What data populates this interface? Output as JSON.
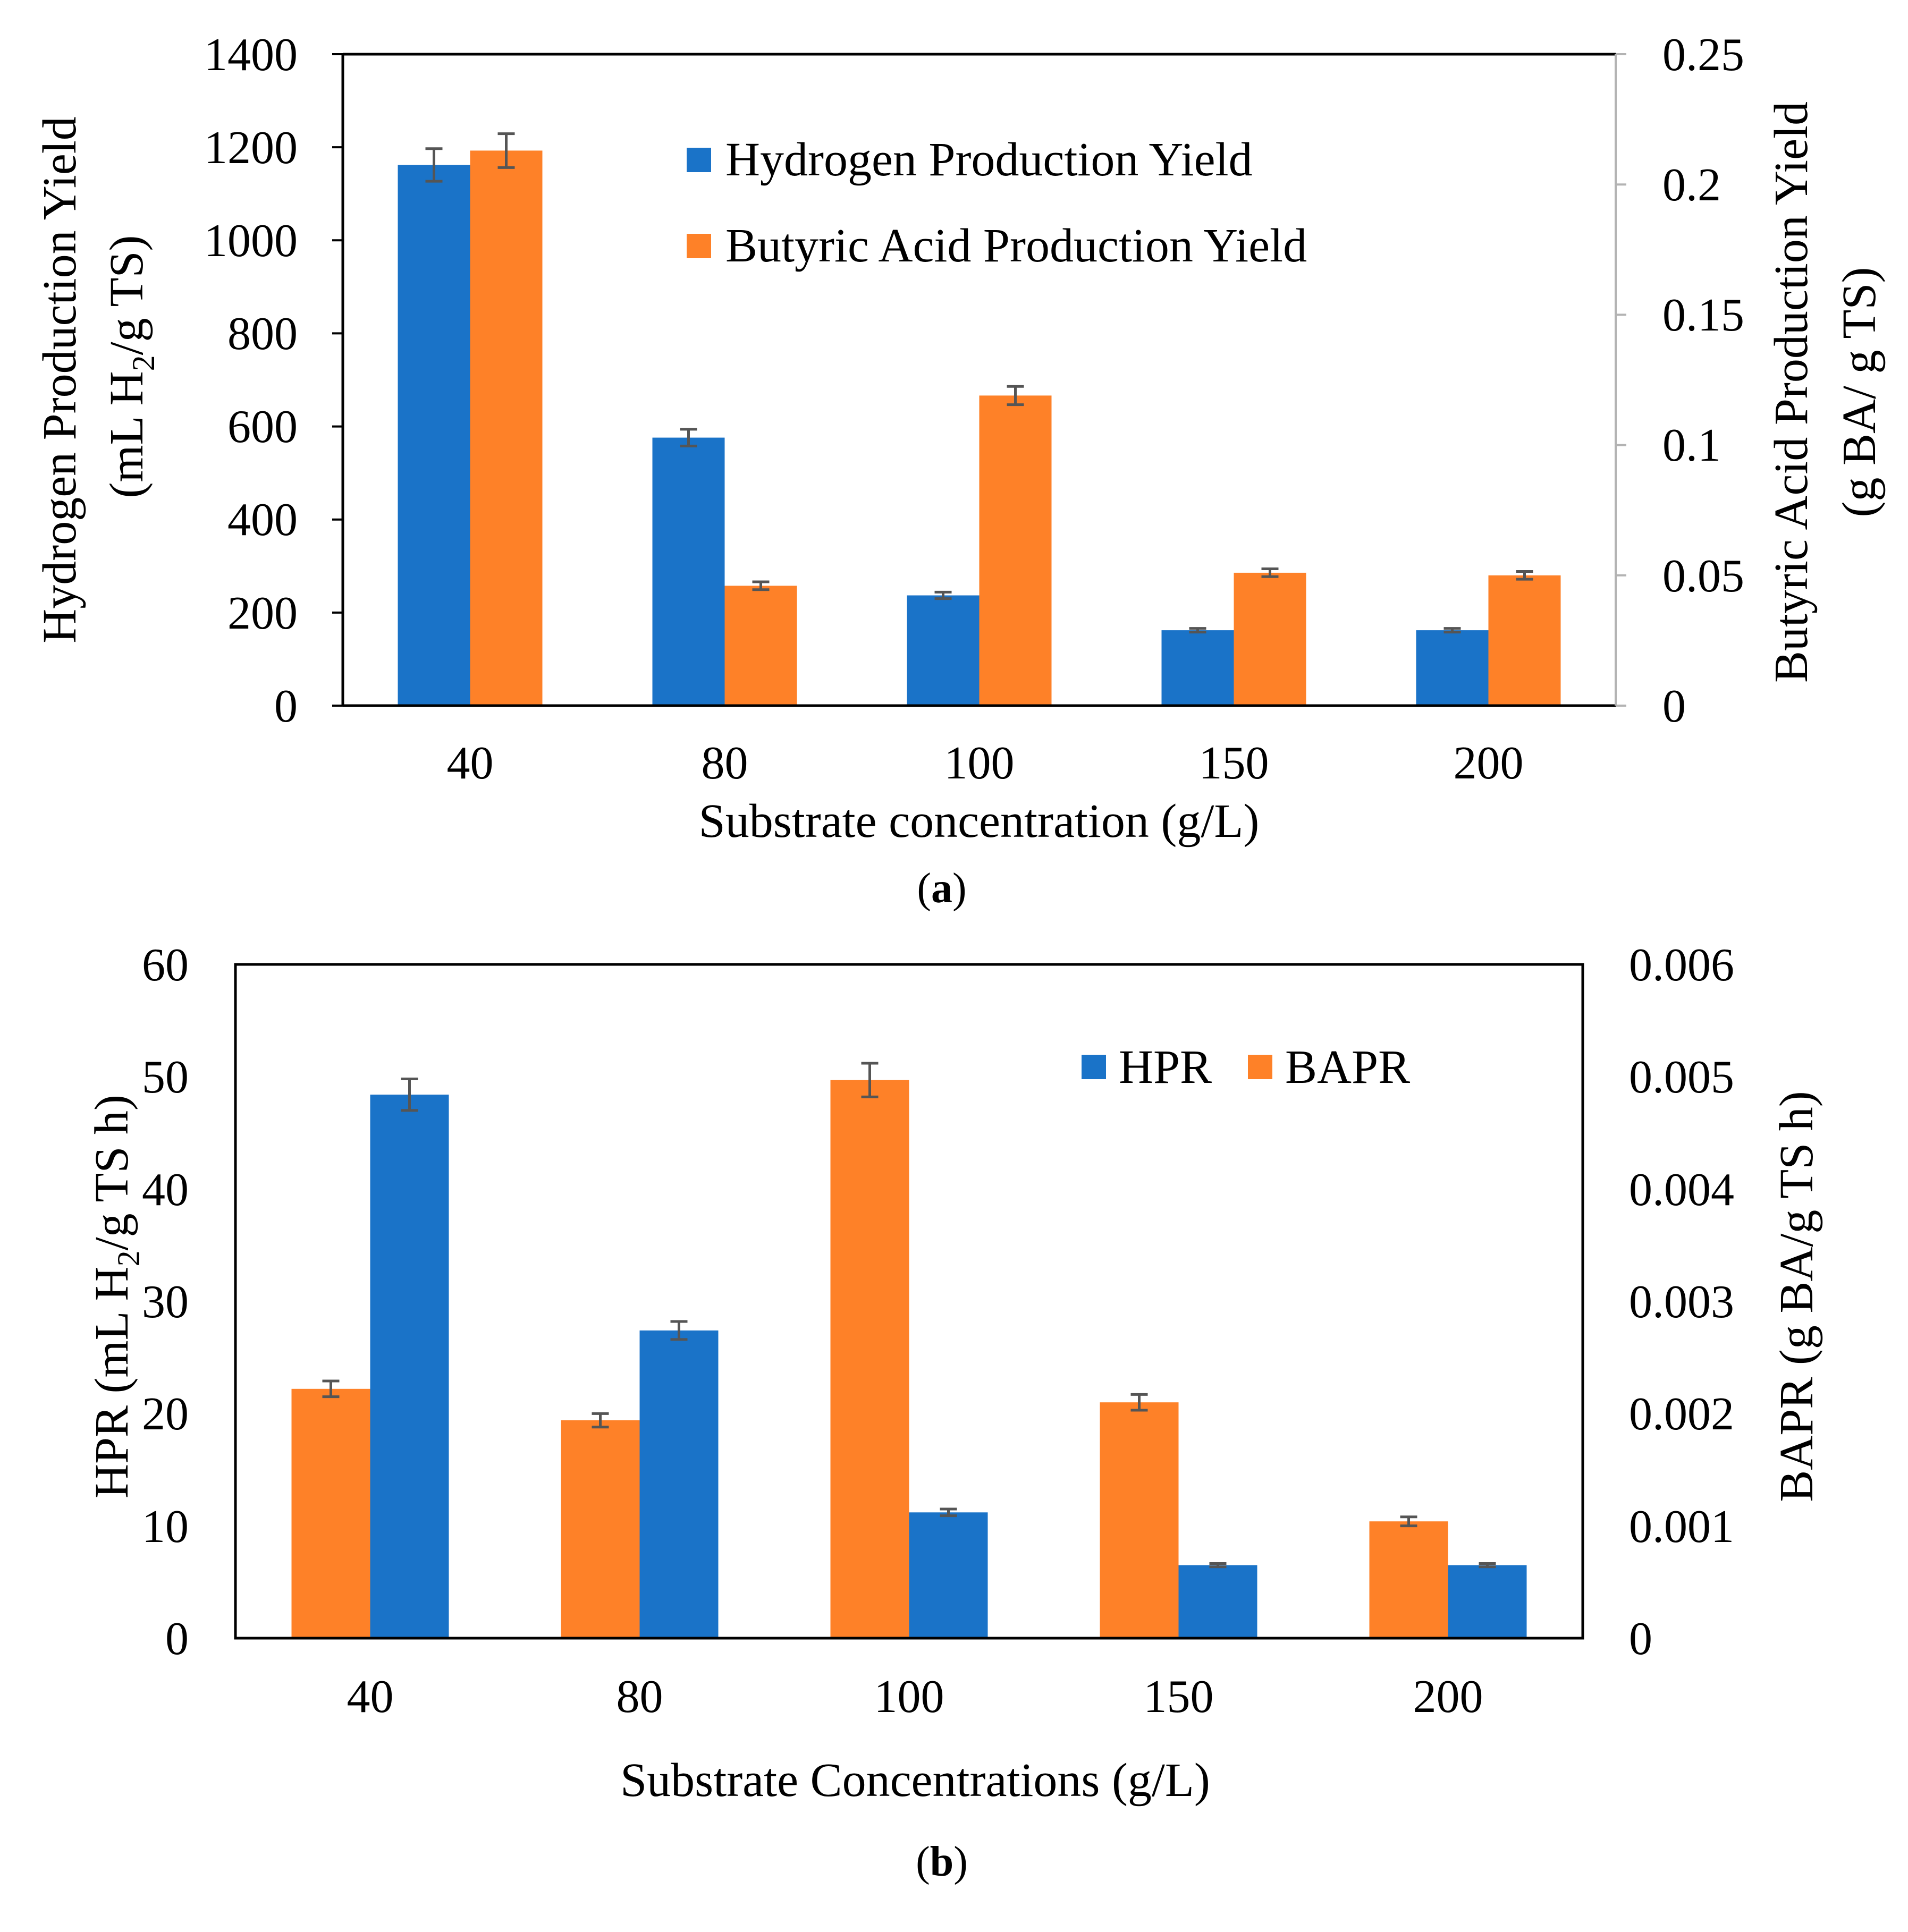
{
  "colors": {
    "hydrogen": "#1a73c8",
    "butyric": "#fe8128",
    "error_bar": "#555555",
    "axis": "#000000",
    "right_axis": "#b3b3b3"
  },
  "charts": {
    "a": {
      "caption_open": "(",
      "caption_letter": "a",
      "caption_close": ")",
      "xlabel": "Substrate concentration (g/L)",
      "ylabel_left_line1": "Hydrogen Production Yield",
      "ylabel_left_line2_pre": "(mL H",
      "ylabel_left_line2_sub": "2",
      "ylabel_left_line2_post": "/g TS)",
      "ylabel_right_line1": "Butyric Acid Production Yield",
      "ylabel_right_line2": "(g BA/ g TS)",
      "left_ticks": [
        "0",
        "200",
        "400",
        "600",
        "800",
        "1000",
        "1200",
        "1400"
      ],
      "right_ticks": [
        "0",
        "0.05",
        "0.1",
        "0.15",
        "0.2",
        "0.25"
      ],
      "legend": [
        "Hydrogen Production Yield",
        "Butyric Acid Production Yield"
      ]
    },
    "b": {
      "caption_open": "(",
      "caption_letter": "b",
      "caption_close": ")",
      "xlabel": "Substrate Concentrations (g/L)",
      "ylabel_left_pre": "HPR (mL H",
      "ylabel_left_sub": "2",
      "ylabel_left_post": "/g TS h)",
      "ylabel_right": "BAPR (g BA/g TS h)",
      "left_ticks": [
        "0",
        "10",
        "20",
        "30",
        "40",
        "50",
        "60"
      ],
      "right_ticks": [
        "0",
        "0.001",
        "0.002",
        "0.003",
        "0.004",
        "0.005",
        "0.006"
      ],
      "legend": [
        "HPR",
        "BAPR"
      ]
    }
  },
  "chart_data": [
    {
      "type": "bar",
      "panel": "a",
      "categories": [
        "40",
        "80",
        "100",
        "150",
        "200"
      ],
      "xlabel": "Substrate concentration (g/L)",
      "ylabel": "Hydrogen Production Yield (mL H2/g TS)",
      "ylabel_right": "Butyric Acid Production Yield (g BA/ g TS)",
      "ylim": [
        0,
        1400
      ],
      "ylim_right": [
        0,
        0.25
      ],
      "legend_position": "top-center",
      "grid": false,
      "series": [
        {
          "name": "Hydrogen Production Yield",
          "axis": "left",
          "values": [
            1162,
            576,
            237,
            162,
            162
          ],
          "errors": [
            35,
            18,
            7,
            4,
            4
          ]
        },
        {
          "name": "Butyric Acid Production Yield",
          "axis": "right",
          "values": [
            0.213,
            0.046,
            0.119,
            0.051,
            0.05
          ],
          "errors": [
            0.0065,
            0.0015,
            0.0035,
            0.0015,
            0.0015
          ]
        }
      ]
    },
    {
      "type": "bar",
      "panel": "b",
      "categories": [
        "40",
        "80",
        "100",
        "150",
        "200"
      ],
      "xlabel": "Substrate Concentrations (g/L)",
      "ylabel": "HPR (mL H2/g TS h)",
      "ylabel_right": "BAPR (g BA/g TS h)",
      "ylim": [
        0,
        60
      ],
      "ylim_right": [
        0,
        0.006
      ],
      "legend_position": "top-right",
      "grid": false,
      "series": [
        {
          "name": "BAPR",
          "axis": "right",
          "values": [
            0.00222,
            0.00194,
            0.00497,
            0.0021,
            0.00104
          ],
          "errors": [
            7e-05,
            6e-05,
            0.00015,
            7e-05,
            4e-05
          ]
        },
        {
          "name": "HPR",
          "axis": "left",
          "values": [
            48.4,
            27.4,
            11.2,
            6.5,
            6.5
          ],
          "errors": [
            1.4,
            0.8,
            0.3,
            0.15,
            0.15
          ]
        }
      ]
    }
  ]
}
